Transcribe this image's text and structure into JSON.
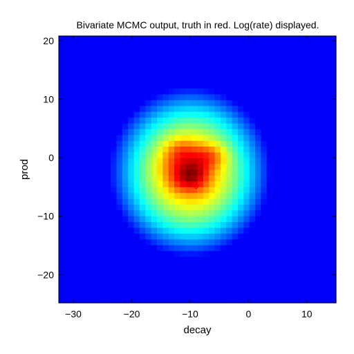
{
  "chart_data": {
    "type": "heatmap",
    "title": "Bivariate MCMC output, truth in red. Log(rate) displayed.",
    "xlabel": "decay",
    "ylabel": "prod",
    "xlim": [
      -32.5,
      15
    ],
    "ylim": [
      -24.8,
      20.8
    ],
    "xticks": [
      -30,
      -20,
      -10,
      0,
      10
    ],
    "yticks": [
      -20,
      -10,
      0,
      10,
      20
    ],
    "x_tick_labels": [
      "−30",
      "−20",
      "−10",
      "0",
      "10"
    ],
    "y_tick_labels": [
      "−20",
      "−10",
      "0",
      "10",
      "20"
    ],
    "grid": false,
    "colormap": "jet",
    "value_scale": "log(rate)",
    "grid_resolution": [
      48,
      46
    ],
    "density_components": [
      {
        "x": -10.0,
        "y": -3.0,
        "sx": 1.4,
        "sy": 1.4,
        "w": 0.95
      },
      {
        "x": -11.0,
        "y": -1.0,
        "sx": 2.3,
        "sy": 2.0,
        "w": 0.55
      },
      {
        "x": -11.5,
        "y": 1.2,
        "sx": 1.6,
        "sy": 1.3,
        "w": 0.25
      },
      {
        "x": -8.5,
        "y": -2.5,
        "sx": 1.6,
        "sy": 2.2,
        "w": 0.35
      },
      {
        "x": -6.8,
        "y": 0.2,
        "sx": 1.8,
        "sy": 1.3,
        "w": 0.45
      },
      {
        "x": -12.0,
        "y": -4.0,
        "sx": 1.4,
        "sy": 1.4,
        "w": 0.2
      },
      {
        "x": -10.0,
        "y": -2.5,
        "sx": 4.5,
        "sy": 4.8,
        "w": 0.55
      },
      {
        "x": -10.0,
        "y": -2.5,
        "sx": 7.0,
        "sy": 7.5,
        "w": 0.3
      },
      {
        "x": -10.0,
        "y": -2.0,
        "sx": 11.0,
        "sy": 11.0,
        "w": 0.12
      }
    ],
    "truth_marker": {
      "x": -9.0,
      "y": -4.8,
      "shape": "diamond",
      "color": "#ff0000"
    }
  }
}
